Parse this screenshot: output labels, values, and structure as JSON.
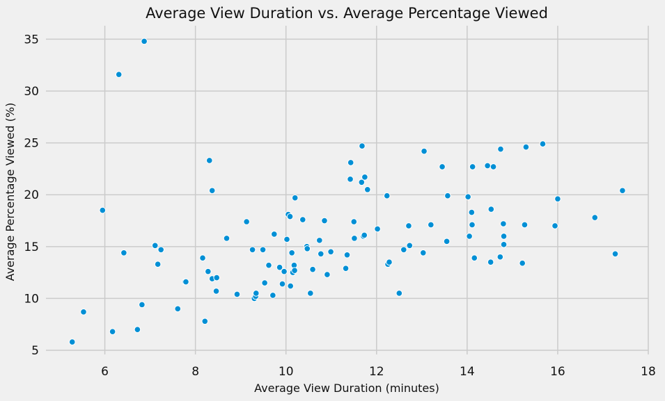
{
  "chart_data": {
    "type": "scatter",
    "title": "Average View Duration vs. Average Percentage Viewed",
    "xlabel": "Average View Duration (minutes)",
    "ylabel": "Average Percentage Viewed (%)",
    "xlim": [
      4.7,
      18
    ],
    "ylim": [
      4.6,
      36.3
    ],
    "xticks": [
      6,
      8,
      10,
      12,
      14,
      16,
      18
    ],
    "yticks": [
      5,
      10,
      15,
      20,
      25,
      30,
      35
    ],
    "grid": true,
    "legend": "none",
    "point_color": "#008fd5",
    "background": "#f0f0f0",
    "points": [
      [
        5.28,
        5.8
      ],
      [
        5.53,
        8.7
      ],
      [
        5.95,
        18.5
      ],
      [
        6.17,
        6.8
      ],
      [
        6.31,
        31.6
      ],
      [
        6.42,
        14.4
      ],
      [
        6.72,
        7.0
      ],
      [
        6.82,
        9.4
      ],
      [
        6.87,
        34.8
      ],
      [
        7.11,
        15.1
      ],
      [
        7.17,
        13.3
      ],
      [
        7.24,
        14.7
      ],
      [
        7.61,
        9.0
      ],
      [
        7.77,
        11.6
      ],
      [
        7.79,
        11.6
      ],
      [
        8.16,
        13.9
      ],
      [
        8.21,
        7.8
      ],
      [
        8.28,
        12.6
      ],
      [
        8.31,
        23.3
      ],
      [
        8.37,
        11.9
      ],
      [
        8.37,
        20.4
      ],
      [
        8.46,
        10.7
      ],
      [
        8.47,
        12.0
      ],
      [
        8.69,
        15.8
      ],
      [
        8.92,
        10.4
      ],
      [
        9.13,
        17.4
      ],
      [
        9.26,
        14.7
      ],
      [
        9.3,
        10.0
      ],
      [
        9.33,
        10.2
      ],
      [
        9.34,
        10.5
      ],
      [
        9.49,
        14.7
      ],
      [
        9.53,
        11.5
      ],
      [
        9.62,
        13.2
      ],
      [
        9.71,
        10.3
      ],
      [
        9.74,
        16.2
      ],
      [
        9.86,
        13.0
      ],
      [
        9.92,
        11.4
      ],
      [
        9.96,
        12.6
      ],
      [
        10.02,
        15.7
      ],
      [
        10.05,
        18.1
      ],
      [
        10.09,
        17.9
      ],
      [
        10.1,
        11.2
      ],
      [
        10.13,
        14.4
      ],
      [
        10.15,
        12.5
      ],
      [
        10.18,
        13.2
      ],
      [
        10.19,
        12.7
      ],
      [
        10.2,
        19.7
      ],
      [
        10.37,
        17.6
      ],
      [
        10.46,
        15.0
      ],
      [
        10.47,
        14.8
      ],
      [
        10.54,
        10.5
      ],
      [
        10.59,
        12.8
      ],
      [
        10.74,
        15.6
      ],
      [
        10.77,
        14.3
      ],
      [
        10.85,
        17.5
      ],
      [
        10.91,
        12.3
      ],
      [
        10.99,
        14.5
      ],
      [
        11.32,
        12.9
      ],
      [
        11.35,
        14.2
      ],
      [
        11.42,
        21.5
      ],
      [
        11.43,
        23.1
      ],
      [
        11.5,
        17.4
      ],
      [
        11.51,
        15.8
      ],
      [
        11.67,
        21.2
      ],
      [
        11.68,
        24.7
      ],
      [
        11.71,
        16.0
      ],
      [
        11.73,
        16.1
      ],
      [
        11.74,
        21.7
      ],
      [
        11.8,
        20.5
      ],
      [
        12.02,
        16.7
      ],
      [
        12.23,
        19.9
      ],
      [
        12.25,
        13.3
      ],
      [
        12.28,
        13.5
      ],
      [
        12.5,
        10.5
      ],
      [
        12.6,
        14.7
      ],
      [
        12.71,
        17.0
      ],
      [
        12.73,
        15.1
      ],
      [
        13.03,
        14.4
      ],
      [
        13.05,
        24.2
      ],
      [
        13.2,
        17.1
      ],
      [
        13.45,
        22.7
      ],
      [
        13.55,
        15.5
      ],
      [
        13.57,
        19.9
      ],
      [
        14.02,
        19.8
      ],
      [
        14.05,
        16.0
      ],
      [
        14.1,
        18.3
      ],
      [
        14.11,
        17.1
      ],
      [
        14.12,
        22.7
      ],
      [
        14.16,
        13.9
      ],
      [
        14.45,
        22.8
      ],
      [
        14.52,
        13.5
      ],
      [
        14.53,
        18.6
      ],
      [
        14.58,
        22.7
      ],
      [
        14.73,
        14.0
      ],
      [
        14.74,
        24.4
      ],
      [
        14.8,
        17.2
      ],
      [
        14.81,
        15.2
      ],
      [
        14.81,
        16.0
      ],
      [
        15.22,
        13.4
      ],
      [
        15.27,
        17.1
      ],
      [
        15.3,
        24.6
      ],
      [
        15.67,
        24.9
      ],
      [
        15.94,
        17.0
      ],
      [
        16.0,
        19.6
      ],
      [
        16.82,
        17.8
      ],
      [
        17.27,
        14.3
      ],
      [
        17.43,
        20.4
      ]
    ]
  }
}
